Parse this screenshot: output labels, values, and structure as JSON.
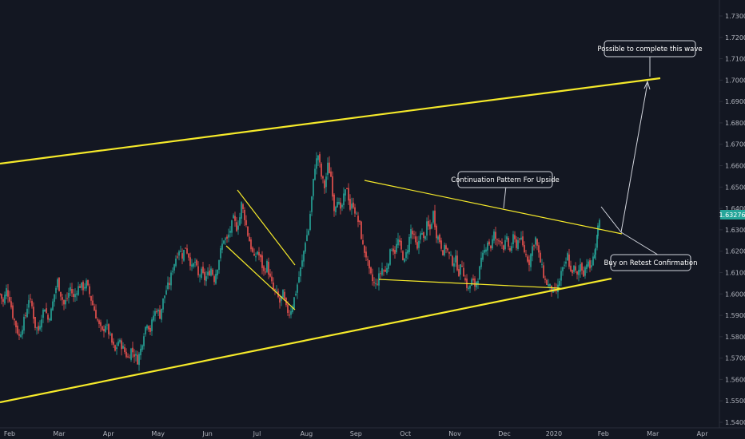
{
  "chart_data": {
    "type": "candlestick",
    "ylim": [
      1.5375,
      1.7425
    ],
    "y_ticks": [
      "1.73000",
      "1.72000",
      "1.71000",
      "1.70000",
      "1.69000",
      "1.68000",
      "1.67000",
      "1.66000",
      "1.65000",
      "1.64000",
      "1.63000",
      "1.62000",
      "1.61000",
      "1.60000",
      "1.59000",
      "1.58000",
      "1.57000",
      "1.56000",
      "1.55000",
      "1.54000"
    ],
    "x_ticks": [
      "Feb",
      "Mar",
      "Apr",
      "May",
      "Jun",
      "Jul",
      "Aug",
      "Sep",
      "Oct",
      "Nov",
      "Dec",
      "2020",
      "Feb",
      "Mar",
      "Apr"
    ],
    "last_price": "1.63276",
    "colors": {
      "background": "#131722",
      "up": "#26a69a",
      "down": "#ef5350",
      "pattern_line": "#f5e92a",
      "arrow": "#d1d4dc",
      "price_tag": "#26a69a"
    },
    "series": [
      {
        "type": "close",
        "points": [
          [
            0,
            1.6
          ],
          [
            4,
            1.596
          ],
          [
            8,
            1.602
          ],
          [
            12,
            1.598
          ],
          [
            16,
            1.59
          ],
          [
            20,
            1.585
          ],
          [
            24,
            1.58
          ],
          [
            28,
            1.585
          ],
          [
            32,
            1.59
          ],
          [
            36,
            1.598
          ],
          [
            40,
            1.594
          ],
          [
            44,
            1.585
          ],
          [
            48,
            1.583
          ],
          [
            52,
            1.59
          ],
          [
            56,
            1.594
          ],
          [
            60,
            1.588
          ],
          [
            64,
            1.592
          ],
          [
            68,
            1.6
          ],
          [
            72,
            1.606
          ],
          [
            76,
            1.6
          ],
          [
            80,
            1.595
          ],
          [
            84,
            1.598
          ],
          [
            88,
            1.603
          ],
          [
            92,
            1.598
          ],
          [
            96,
            1.602
          ],
          [
            100,
            1.604
          ],
          [
            104,
            1.603
          ],
          [
            108,
            1.605
          ],
          [
            112,
            1.6
          ],
          [
            116,
            1.595
          ],
          [
            120,
            1.59
          ],
          [
            124,
            1.585
          ],
          [
            128,
            1.582
          ],
          [
            132,
            1.586
          ],
          [
            136,
            1.582
          ],
          [
            140,
            1.577
          ],
          [
            144,
            1.573
          ],
          [
            148,
            1.578
          ],
          [
            152,
            1.576
          ],
          [
            156,
            1.573
          ],
          [
            160,
            1.57
          ],
          [
            164,
            1.574
          ],
          [
            168,
            1.572
          ],
          [
            172,
            1.569
          ],
          [
            176,
            1.574
          ],
          [
            180,
            1.582
          ],
          [
            184,
            1.587
          ],
          [
            188,
            1.583
          ],
          [
            192,
            1.59
          ],
          [
            196,
            1.593
          ],
          [
            200,
            1.59
          ],
          [
            204,
            1.597
          ],
          [
            208,
            1.602
          ],
          [
            212,
            1.605
          ],
          [
            216,
            1.612
          ],
          [
            220,
            1.617
          ],
          [
            224,
            1.621
          ],
          [
            228,
            1.618
          ],
          [
            232,
            1.622
          ],
          [
            236,
            1.618
          ],
          [
            240,
            1.612
          ],
          [
            244,
            1.615
          ],
          [
            248,
            1.608
          ],
          [
            252,
            1.61
          ],
          [
            256,
            1.607
          ],
          [
            260,
            1.609
          ],
          [
            264,
            1.612
          ],
          [
            268,
            1.607
          ],
          [
            272,
            1.613
          ],
          [
            276,
            1.62
          ],
          [
            280,
            1.626
          ],
          [
            284,
            1.625
          ],
          [
            288,
            1.63
          ],
          [
            292,
            1.635
          ],
          [
            296,
            1.631
          ],
          [
            300,
            1.636
          ],
          [
            302,
            1.642
          ],
          [
            306,
            1.636
          ],
          [
            310,
            1.628
          ],
          [
            314,
            1.622
          ],
          [
            318,
            1.616
          ],
          [
            322,
            1.62
          ],
          [
            326,
            1.616
          ],
          [
            330,
            1.61
          ],
          [
            334,
            1.614
          ],
          [
            338,
            1.607
          ],
          [
            342,
            1.602
          ],
          [
            346,
            1.6
          ],
          [
            350,
            1.596
          ],
          [
            354,
            1.6
          ],
          [
            358,
            1.593
          ],
          [
            362,
            1.591
          ],
          [
            366,
            1.595
          ],
          [
            370,
            1.601
          ],
          [
            374,
            1.608
          ],
          [
            378,
            1.615
          ],
          [
            382,
            1.625
          ],
          [
            386,
            1.63
          ],
          [
            390,
            1.645
          ],
          [
            394,
            1.66
          ],
          [
            398,
            1.665
          ],
          [
            402,
            1.655
          ],
          [
            406,
            1.65
          ],
          [
            410,
            1.66
          ],
          [
            414,
            1.655
          ],
          [
            418,
            1.64
          ],
          [
            422,
            1.645
          ],
          [
            426,
            1.638
          ],
          [
            430,
            1.645
          ],
          [
            434,
            1.65
          ],
          [
            438,
            1.64
          ],
          [
            442,
            1.642
          ],
          [
            446,
            1.636
          ],
          [
            450,
            1.632
          ],
          [
            454,
            1.622
          ],
          [
            458,
            1.618
          ],
          [
            462,
            1.61
          ],
          [
            466,
            1.606
          ],
          [
            470,
            1.604
          ],
          [
            474,
            1.608
          ],
          [
            478,
            1.612
          ],
          [
            482,
            1.61
          ],
          [
            486,
            1.616
          ],
          [
            490,
            1.622
          ],
          [
            494,
            1.62
          ],
          [
            498,
            1.625
          ],
          [
            502,
            1.62
          ],
          [
            506,
            1.615
          ],
          [
            510,
            1.622
          ],
          [
            514,
            1.63
          ],
          [
            518,
            1.626
          ],
          [
            522,
            1.62
          ],
          [
            526,
            1.63
          ],
          [
            530,
            1.625
          ],
          [
            534,
            1.632
          ],
          [
            538,
            1.63
          ],
          [
            542,
            1.638
          ],
          [
            546,
            1.628
          ],
          [
            550,
            1.625
          ],
          [
            554,
            1.62
          ],
          [
            558,
            1.622
          ],
          [
            562,
            1.618
          ],
          [
            566,
            1.615
          ],
          [
            570,
            1.616
          ],
          [
            574,
            1.61
          ],
          [
            578,
            1.614
          ],
          [
            582,
            1.606
          ],
          [
            586,
            1.602
          ],
          [
            590,
            1.606
          ],
          [
            594,
            1.604
          ],
          [
            598,
            1.608
          ],
          [
            602,
            1.615
          ],
          [
            606,
            1.62
          ],
          [
            610,
            1.625
          ],
          [
            614,
            1.622
          ],
          [
            618,
            1.628
          ],
          [
            622,
            1.624
          ],
          [
            626,
            1.626
          ],
          [
            630,
            1.622
          ],
          [
            634,
            1.625
          ],
          [
            638,
            1.62
          ],
          [
            642,
            1.626
          ],
          [
            646,
            1.623
          ],
          [
            650,
            1.627
          ],
          [
            654,
            1.622
          ],
          [
            658,
            1.618
          ],
          [
            662,
            1.615
          ],
          [
            666,
            1.622
          ],
          [
            670,
            1.626
          ],
          [
            674,
            1.618
          ],
          [
            678,
            1.612
          ],
          [
            682,
            1.606
          ],
          [
            686,
            1.604
          ],
          [
            690,
            1.602
          ],
          [
            694,
            1.6
          ],
          [
            698,
            1.603
          ],
          [
            702,
            1.61
          ],
          [
            706,
            1.612
          ],
          [
            710,
            1.618
          ],
          [
            714,
            1.61
          ],
          [
            718,
            1.612
          ],
          [
            722,
            1.608
          ],
          [
            726,
            1.614
          ],
          [
            730,
            1.61
          ],
          [
            734,
            1.615
          ],
          [
            738,
            1.612
          ],
          [
            742,
            1.616
          ],
          [
            745,
            1.622
          ],
          [
            748,
            1.63
          ],
          [
            750,
            1.633
          ]
        ]
      }
    ],
    "annotations": [
      {
        "text": "Possible to complete this wave"
      },
      {
        "text": "Continuation Pattern For Upside"
      },
      {
        "text": "Buy on Retest Confirmation"
      }
    ]
  }
}
